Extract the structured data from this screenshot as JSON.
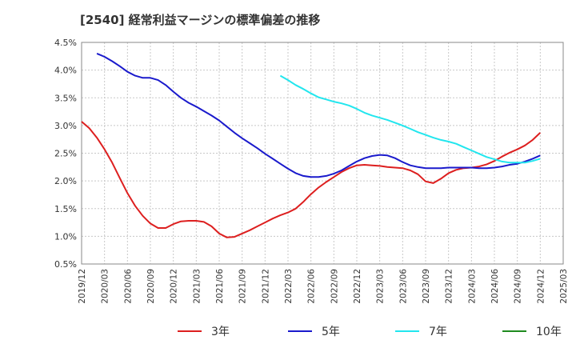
{
  "chart_data": {
    "type": "line",
    "title": "[2540]  経常利益マージンの標準偏差の推移",
    "xlabel": "",
    "ylabel": "",
    "ylim": [
      0.5,
      4.5
    ],
    "yticks": [
      "0.5%",
      "1.0%",
      "1.5%",
      "2.0%",
      "2.5%",
      "3.0%",
      "3.5%",
      "4.0%",
      "4.5%"
    ],
    "xticks": [
      "2019/12",
      "2020/03",
      "2020/06",
      "2020/09",
      "2020/12",
      "2021/03",
      "2021/06",
      "2021/09",
      "2021/12",
      "2022/03",
      "2022/06",
      "2022/09",
      "2022/12",
      "2023/03",
      "2023/06",
      "2023/09",
      "2023/12",
      "2024/03",
      "2024/06",
      "2024/09",
      "2024/12",
      "2025/03"
    ],
    "grid": true,
    "legend_position": "bottom",
    "series": [
      {
        "name": "3年",
        "color": "#dd1f1f",
        "x": [
          "2019/12",
          "2020/01",
          "2020/02",
          "2020/03",
          "2020/04",
          "2020/05",
          "2020/06",
          "2020/07",
          "2020/08",
          "2020/09",
          "2020/10",
          "2020/11",
          "2020/12",
          "2021/01",
          "2021/02",
          "2021/03",
          "2021/04",
          "2021/05",
          "2021/06",
          "2021/07",
          "2021/08",
          "2021/09",
          "2021/10",
          "2021/11",
          "2021/12",
          "2022/01",
          "2022/02",
          "2022/03",
          "2022/04",
          "2022/05",
          "2022/06",
          "2022/07",
          "2022/08",
          "2022/09",
          "2022/10",
          "2022/11",
          "2022/12",
          "2023/01",
          "2023/02",
          "2023/03",
          "2023/04",
          "2023/05",
          "2023/06",
          "2023/07",
          "2023/08",
          "2023/09",
          "2023/10",
          "2023/11",
          "2023/12",
          "2024/01",
          "2024/02",
          "2024/03",
          "2024/04",
          "2024/05",
          "2024/06",
          "2024/07",
          "2024/08",
          "2024/09",
          "2024/10",
          "2024/11",
          "2024/12"
        ],
        "values": [
          3.07,
          2.95,
          2.78,
          2.57,
          2.33,
          2.05,
          1.78,
          1.55,
          1.37,
          1.23,
          1.15,
          1.15,
          1.22,
          1.27,
          1.28,
          1.28,
          1.26,
          1.18,
          1.05,
          0.98,
          0.99,
          1.05,
          1.11,
          1.18,
          1.25,
          1.32,
          1.38,
          1.43,
          1.5,
          1.62,
          1.76,
          1.88,
          1.98,
          2.07,
          2.16,
          2.23,
          2.28,
          2.29,
          2.28,
          2.27,
          2.25,
          2.24,
          2.23,
          2.19,
          2.12,
          1.99,
          1.96,
          2.04,
          2.14,
          2.2,
          2.23,
          2.24,
          2.26,
          2.3,
          2.36,
          2.44,
          2.51,
          2.57,
          2.64,
          2.74,
          2.87
        ]
      },
      {
        "name": "5年",
        "color": "#1a1acc",
        "x": [
          "2020/02",
          "2020/03",
          "2020/04",
          "2020/05",
          "2020/06",
          "2020/07",
          "2020/08",
          "2020/09",
          "2020/10",
          "2020/11",
          "2020/12",
          "2021/01",
          "2021/02",
          "2021/03",
          "2021/04",
          "2021/05",
          "2021/06",
          "2021/07",
          "2021/08",
          "2021/09",
          "2021/10",
          "2021/11",
          "2021/12",
          "2022/01",
          "2022/02",
          "2022/03",
          "2022/04",
          "2022/05",
          "2022/06",
          "2022/07",
          "2022/08",
          "2022/09",
          "2022/10",
          "2022/11",
          "2022/12",
          "2023/01",
          "2023/02",
          "2023/03",
          "2023/04",
          "2023/05",
          "2023/06",
          "2023/07",
          "2023/08",
          "2023/09",
          "2023/10",
          "2023/11",
          "2023/12",
          "2024/01",
          "2024/02",
          "2024/03",
          "2024/04",
          "2024/05",
          "2024/06",
          "2024/07",
          "2024/08",
          "2024/09",
          "2024/10",
          "2024/11",
          "2024/12"
        ],
        "values": [
          4.3,
          4.24,
          4.16,
          4.07,
          3.97,
          3.9,
          3.86,
          3.86,
          3.82,
          3.73,
          3.61,
          3.5,
          3.41,
          3.34,
          3.26,
          3.18,
          3.09,
          2.98,
          2.87,
          2.77,
          2.68,
          2.59,
          2.49,
          2.4,
          2.31,
          2.22,
          2.14,
          2.09,
          2.07,
          2.07,
          2.09,
          2.13,
          2.19,
          2.27,
          2.35,
          2.41,
          2.45,
          2.47,
          2.46,
          2.41,
          2.34,
          2.28,
          2.25,
          2.23,
          2.23,
          2.23,
          2.24,
          2.24,
          2.24,
          2.24,
          2.23,
          2.23,
          2.24,
          2.26,
          2.29,
          2.31,
          2.35,
          2.4,
          2.46
        ]
      },
      {
        "name": "7年",
        "color": "#22e6ee",
        "x": [
          "2022/02",
          "2022/03",
          "2022/04",
          "2022/05",
          "2022/06",
          "2022/07",
          "2022/08",
          "2022/09",
          "2022/10",
          "2022/11",
          "2022/12",
          "2023/01",
          "2023/02",
          "2023/03",
          "2023/04",
          "2023/05",
          "2023/06",
          "2023/07",
          "2023/08",
          "2023/09",
          "2023/10",
          "2023/11",
          "2023/12",
          "2024/01",
          "2024/02",
          "2024/03",
          "2024/04",
          "2024/05",
          "2024/06",
          "2024/07",
          "2024/08",
          "2024/09",
          "2024/10",
          "2024/11",
          "2024/12"
        ],
        "values": [
          3.9,
          3.82,
          3.73,
          3.66,
          3.58,
          3.51,
          3.47,
          3.43,
          3.4,
          3.36,
          3.3,
          3.23,
          3.18,
          3.14,
          3.1,
          3.05,
          3.0,
          2.94,
          2.88,
          2.83,
          2.78,
          2.74,
          2.71,
          2.67,
          2.61,
          2.55,
          2.49,
          2.43,
          2.39,
          2.35,
          2.33,
          2.33,
          2.33,
          2.36,
          2.4
        ]
      },
      {
        "name": "10年",
        "color": "#1f8a1f",
        "x": [],
        "values": []
      }
    ]
  }
}
